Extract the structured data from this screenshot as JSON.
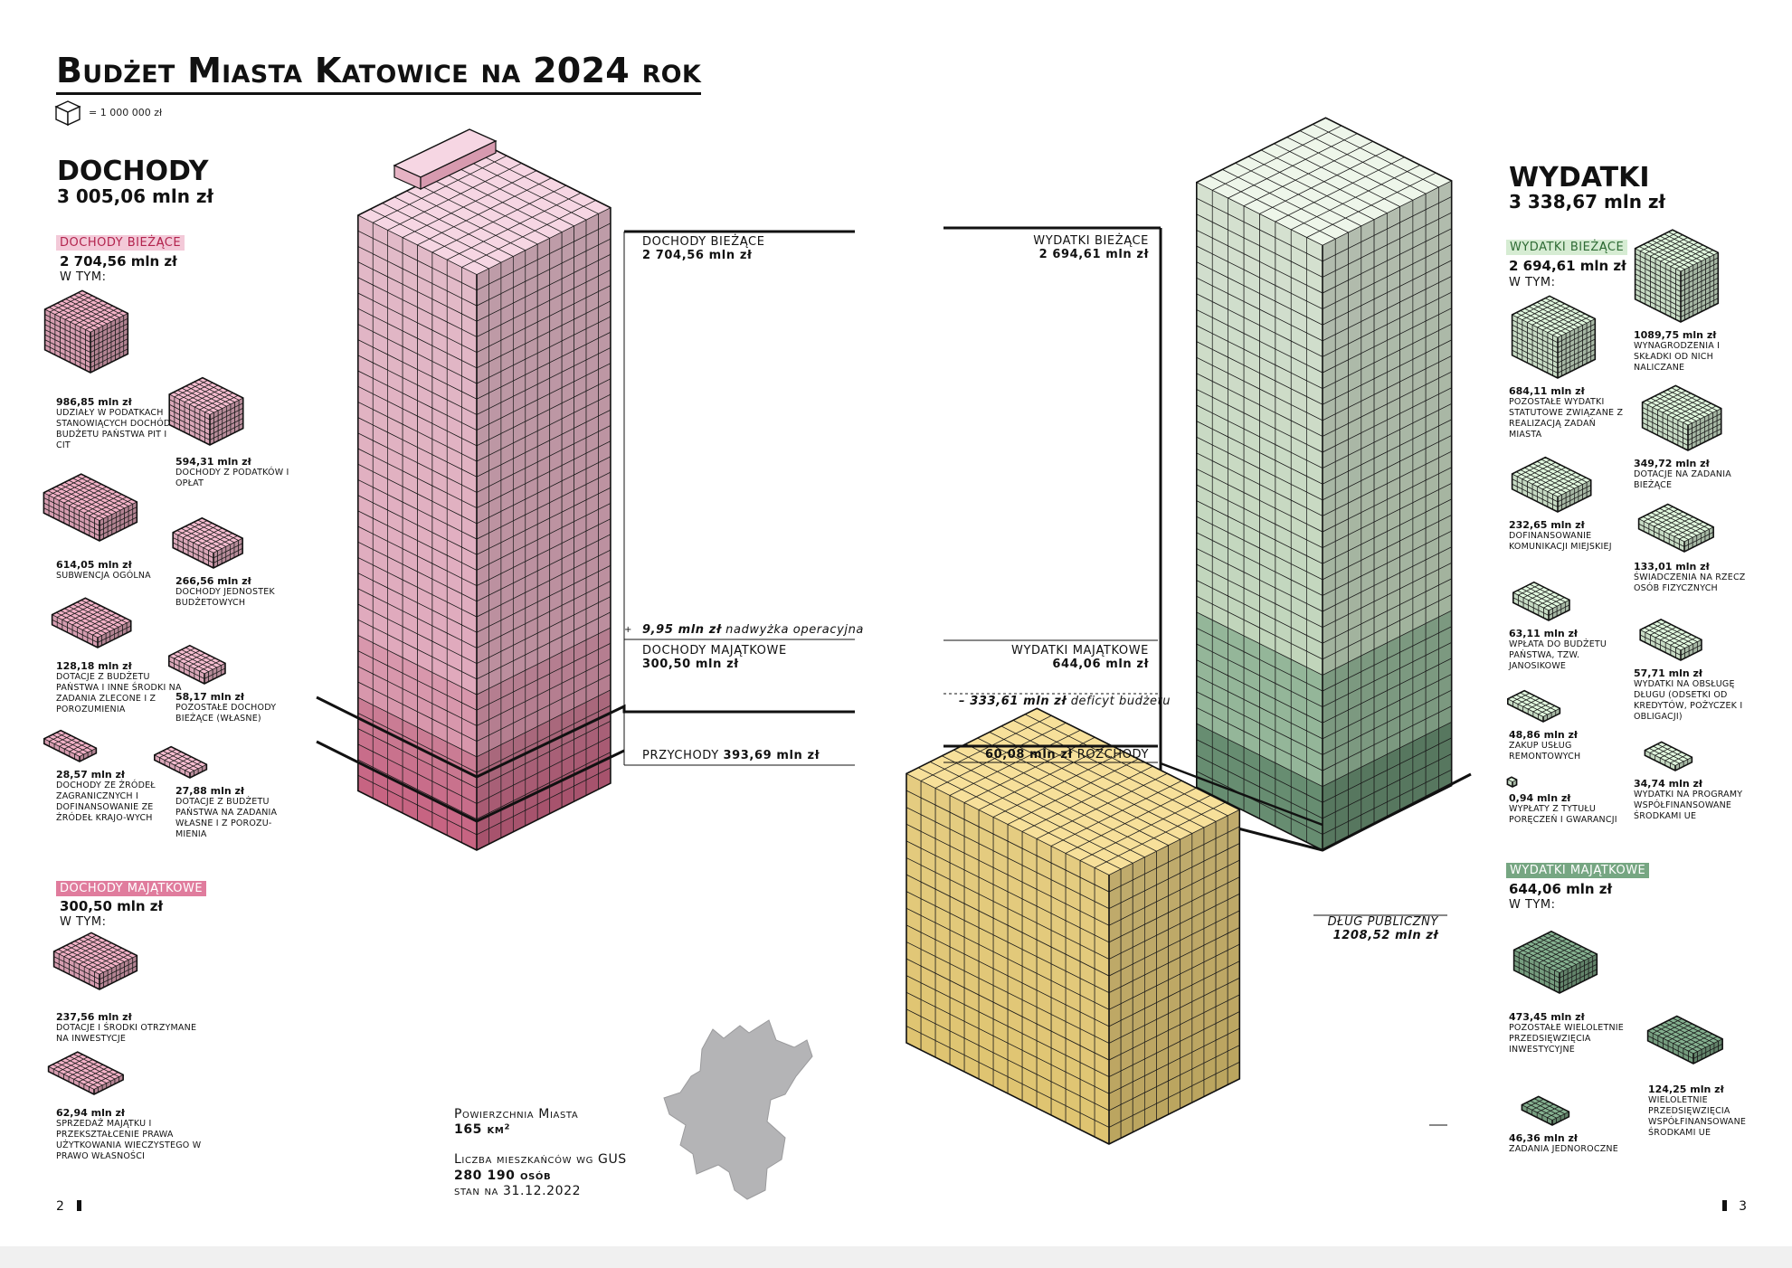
{
  "title": "Budżet Miasta Katowice na 2024 rok",
  "legend": {
    "unit_text": "= 1 000 000 zł",
    "unit_icon": "cube-icon"
  },
  "colors": {
    "income_light": "#f3c9d8",
    "income_dark": "#d66b8c",
    "expense_light": "#e6f2e1",
    "expense_dark": "#5e8a6a",
    "debt": "#f0d37a"
  },
  "income": {
    "heading": "DOCHODY",
    "total": "3 005,06 mln zł",
    "current": {
      "chip": "DOCHODY BIEŻĄCE",
      "value": "2 704,56 mln zł",
      "wtym": "W TYM:",
      "items": [
        {
          "value": "986,85 mln zł",
          "desc": "UDZIAŁY W PODATKACH STANOWIĄCYCH DOCHÓD BUDŻETU PAŃSTWA PIT I CIT"
        },
        {
          "value": "594,31 mln zł",
          "desc": "DOCHODY Z PODATKÓW I OPŁAT"
        },
        {
          "value": "614,05 mln zł",
          "desc": "SUBWENCJA OGÓLNA"
        },
        {
          "value": "266,56 mln zł",
          "desc": "DOCHODY JEDNOSTEK BUDŻETOWYCH"
        },
        {
          "value": "128,18 mln zł",
          "desc": "DOTACJE Z BUDŻETU PAŃSTWA I INNE ŚRODKI NA ZADANIA ZLECONE I Z POROZUMIENIA"
        },
        {
          "value": "58,17 mln zł",
          "desc": "POZOSTAŁE DOCHODY BIEŻĄCE (WŁASNE)"
        },
        {
          "value": "28,57 mln zł",
          "desc": "DOCHODY ZE ŹRÓDEŁ ZAGRANICZNYCH I DOFINANSOWANIE ZE ŹRÓDEŁ KRAJO-WYCH"
        },
        {
          "value": "27,88 mln zł",
          "desc": "DOTACJE Z BUDŻETU PAŃSTWA NA ZADANIA WŁASNE I Z POROZU-MIENIA"
        }
      ]
    },
    "capital": {
      "chip": "DOCHODY MAJĄTKOWE",
      "value": "300,50 mln zł",
      "wtym": "W TYM:",
      "items": [
        {
          "value": "237,56 mln zł",
          "desc": "DOTACJE I ŚRODKI OTRZYMANE NA INWESTYCJE"
        },
        {
          "value": "62,94 mln zł",
          "desc": "SPRZEDAŻ MAJĄTKU I PRZEKSZTAŁCENIE PRAWA UŻYTKOWANIA WIECZYSTEGO W PRAWO WŁASNOŚCI"
        }
      ]
    }
  },
  "expenses": {
    "heading": "WYDATKI",
    "total": "3 338,67 mln zł",
    "current": {
      "chip": "WYDATKI BIEŻĄCE",
      "value": "2 694,61 mln zł",
      "wtym": "W TYM:",
      "items": [
        {
          "value": "1089,75 mln zł",
          "desc": "WYNAGRODZENIA I SKŁADKI OD NICH NALICZANE"
        },
        {
          "value": "684,11 mln zł",
          "desc": "POZOSTAŁE WYDATKI STATUTOWE ZWIĄZANE Z REALIZACJĄ ZADAŃ MIASTA"
        },
        {
          "value": "349,72 mln zł",
          "desc": "DOTACJE NA ZADANIA BIEŻĄCE"
        },
        {
          "value": "232,65 mln zł",
          "desc": "DOFINANSOWANIE KOMUNIKACJI MIEJSKIEJ"
        },
        {
          "value": "133,01 mln zł",
          "desc": "ŚWIADCZENIA NA RZECZ OSÓB FIZYCZNYCH"
        },
        {
          "value": "63,11 mln zł",
          "desc": "WPŁATA DO BUDŻETU PAŃSTWA, TZW. JANOSIKOWE"
        },
        {
          "value": "57,71 mln zł",
          "desc": "WYDATKI NA OBSŁUGĘ DŁUGU (ODSETKI OD KREDYTÓW, POŻYCZEK I OBLIGACJI)"
        },
        {
          "value": "48,86 mln zł",
          "desc": "ZAKUP USŁUG REMONTOWYCH"
        },
        {
          "value": "34,74 mln zł",
          "desc": "WYDATKI NA PROGRAMY WSPÓŁFINANSOWANE ŚRODKAMI UE"
        },
        {
          "value": "0,94 mln zł",
          "desc": "WYPŁATY Z TYTUŁU PORĘCZEŃ I GWARANCJI"
        }
      ]
    },
    "capital": {
      "chip": "WYDATKI MAJĄTKOWE",
      "value": "644,06 mln zł",
      "wtym": "W TYM:",
      "items": [
        {
          "value": "473,45 mln zł",
          "desc": "POZOSTAŁE WIELOLETNIE PRZEDSIĘWZIĘCIA INWESTYCYJNE"
        },
        {
          "value": "124,25 mln zł",
          "desc": "WIELOLETNIE PRZEDSIĘWZIĘCIA WSPÓŁFINANSOWANE ŚRODKAMI UE"
        },
        {
          "value": "46,36 mln zł",
          "desc": "ZADANIA JEDNOROCZNE"
        }
      ]
    }
  },
  "tower_labels": {
    "income_current": {
      "name": "DOCHODY BIEŻĄCE",
      "value": "2 704,56 mln zł"
    },
    "surplus": {
      "value": "9,95 mln zł",
      "text": "nadwyżka operacyjna",
      "sign": "+"
    },
    "income_capital": {
      "name": "DOCHODY MAJĄTKOWE",
      "value": "300,50 mln zł"
    },
    "revenues": {
      "name": "PRZYCHODY",
      "value": "393,69 mln zł"
    },
    "expense_current": {
      "name": "WYDATKI BIEŻĄCE",
      "value": "2 694,61 mln zł"
    },
    "expense_capital": {
      "name": "WYDATKI MAJĄTKOWE",
      "value": "644,06 mln zł"
    },
    "deficit": {
      "value": "– 333,61 mln zł",
      "text": "deficyt budżetu"
    },
    "outgoings": {
      "value": "60,08 mln zł",
      "name": "ROZCHODY"
    },
    "debt": {
      "name": "DŁUG PUBLICZNY",
      "value": "1208,52 mln zł"
    }
  },
  "city": {
    "area_label": "Powierzchnia Miasta",
    "area_value": "165 km²",
    "pop_label": "Liczba mieszkańców wg GUS",
    "pop_value": "280 190 osób",
    "pop_date": "stan na 31.12.2022"
  },
  "pages": {
    "left": "2",
    "right": "3"
  },
  "chart_data": {
    "type": "bar",
    "unit": "mln zł",
    "categories": [
      "DOCHODY",
      "WYDATKI",
      "DŁUG PUBLICZNY"
    ],
    "series": [
      {
        "name": "DOCHODY BIEŻĄCE",
        "values": [
          2704.56,
          0,
          0
        ]
      },
      {
        "name": "DOCHODY MAJĄTKOWE",
        "values": [
          300.5,
          0,
          0
        ]
      },
      {
        "name": "PRZYCHODY",
        "values": [
          393.69,
          0,
          0
        ]
      },
      {
        "name": "WYDATKI BIEŻĄCE",
        "values": [
          0,
          2694.61,
          0
        ]
      },
      {
        "name": "WYDATKI MAJĄTKOWE",
        "values": [
          0,
          644.06,
          0
        ]
      },
      {
        "name": "ROZCHODY",
        "values": [
          0,
          60.08,
          0
        ]
      },
      {
        "name": "DŁUG PUBLICZNY",
        "values": [
          0,
          0,
          1208.52
        ]
      }
    ],
    "annotations": [
      {
        "text": "nadwyżka operacyjna",
        "value": 9.95
      },
      {
        "text": "deficyt budżetu",
        "value": -333.61
      }
    ]
  }
}
